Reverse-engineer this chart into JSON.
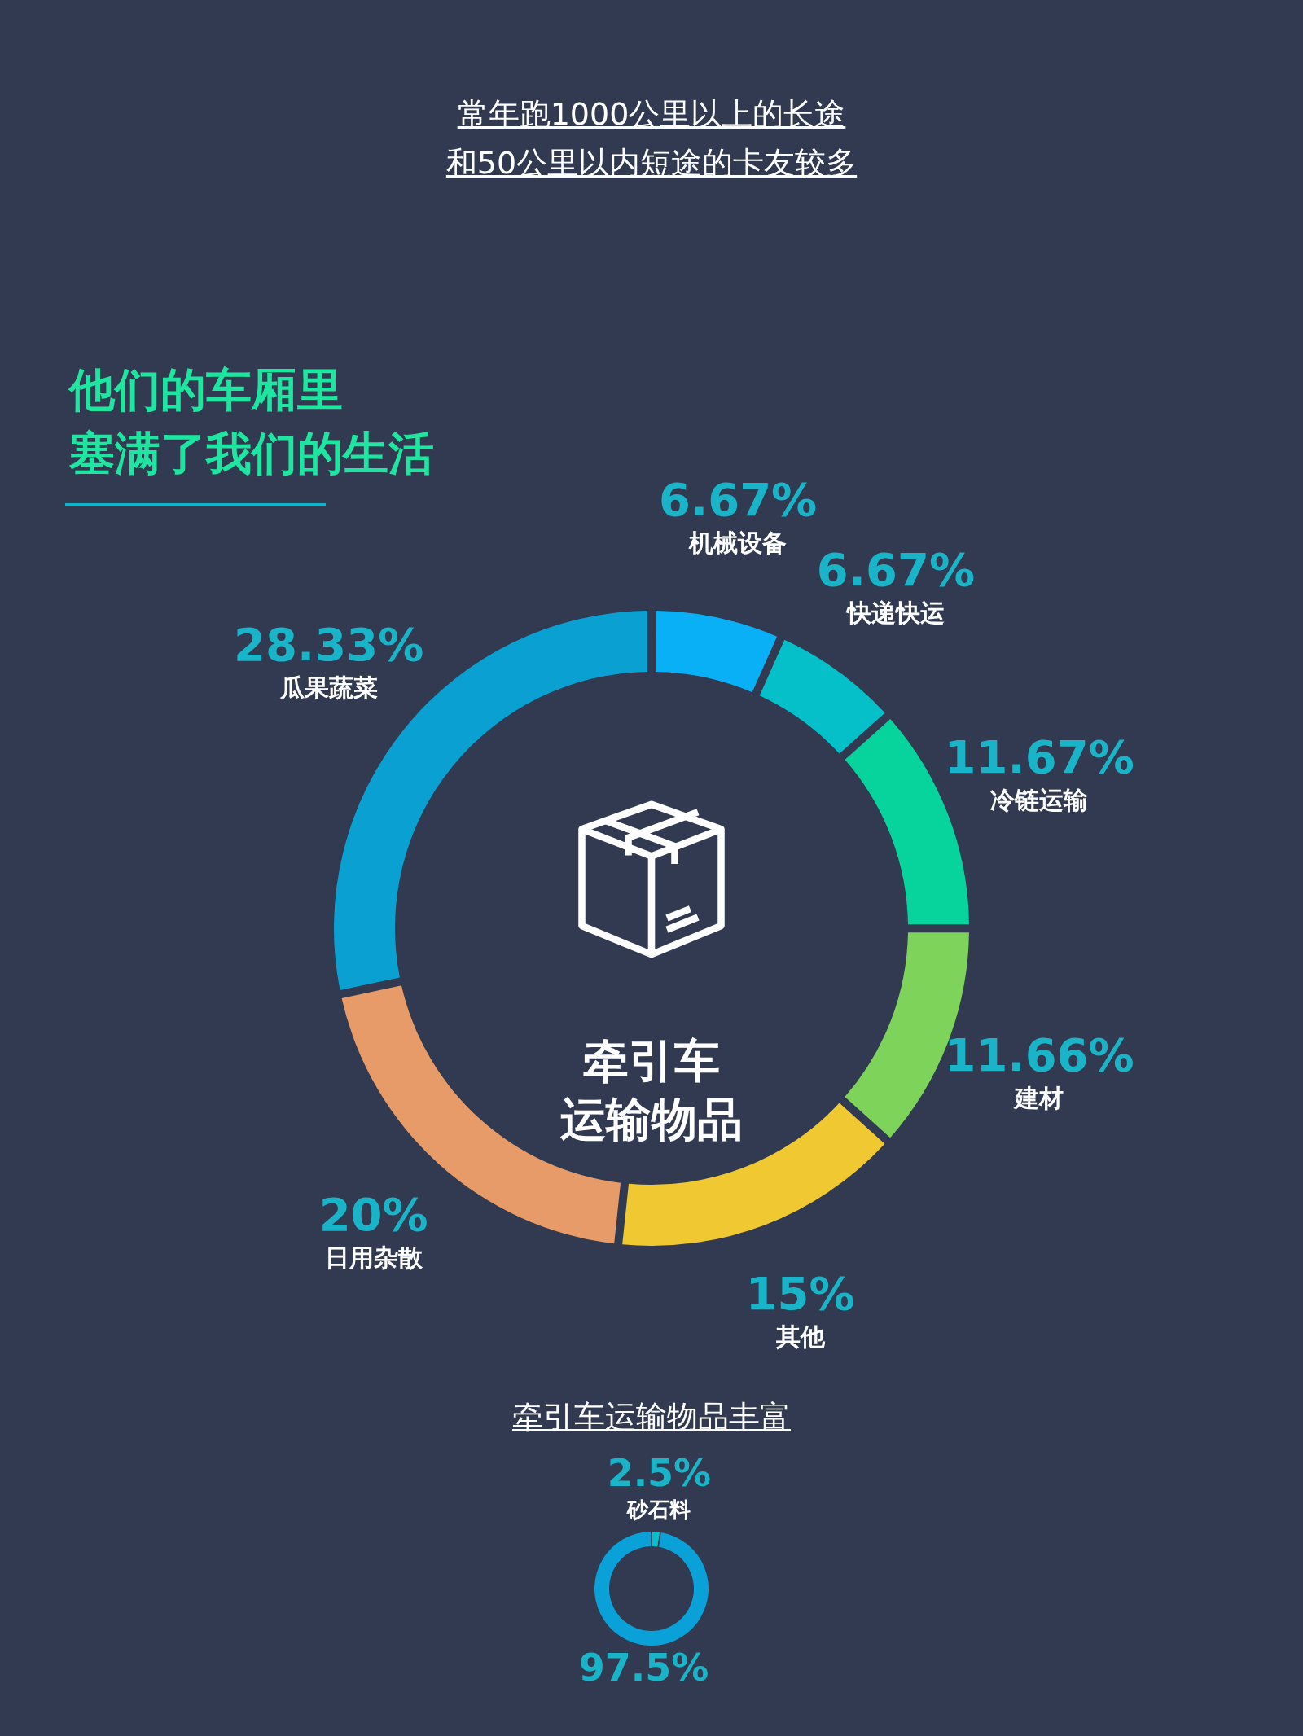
{
  "chart_data": [
    {
      "type": "other",
      "annotations": [
        "常年跑1000公里以上的长途",
        "和50公里以内短途的卡友较多"
      ]
    },
    {
      "type": "donut",
      "title": "他们的车厢里",
      "subtitle": "塞满了我们的生活",
      "categories": [
        "机械设备",
        "快递快运",
        "冷链运输",
        "建材",
        "其他",
        "日用杂散",
        "瓜果蔬菜"
      ],
      "values": [
        6.67,
        6.67,
        11.67,
        11.66,
        15,
        20,
        28.33
      ],
      "value_labels": [
        "6.67%",
        "6.67%",
        "11.67%",
        "11.66%",
        "15%",
        "20%",
        "28.33%"
      ],
      "colors": [
        "#0ab0f5",
        "#05c0c8",
        "#07d39c",
        "#7ed35a",
        "#f0c832",
        "#e69b68",
        "#0aa0d2"
      ],
      "annotations": [
        "牵引车",
        "运输物品",
        "牵引车运输物品丰富"
      ]
    },
    {
      "type": "donut",
      "categories": [
        "砂石料",
        null
      ],
      "values": [
        2.5,
        97.5
      ],
      "value_labels": [
        "2.5%",
        "97.5%"
      ],
      "colors": [
        "#08c0c8",
        "#0aa0d8"
      ]
    }
  ]
}
